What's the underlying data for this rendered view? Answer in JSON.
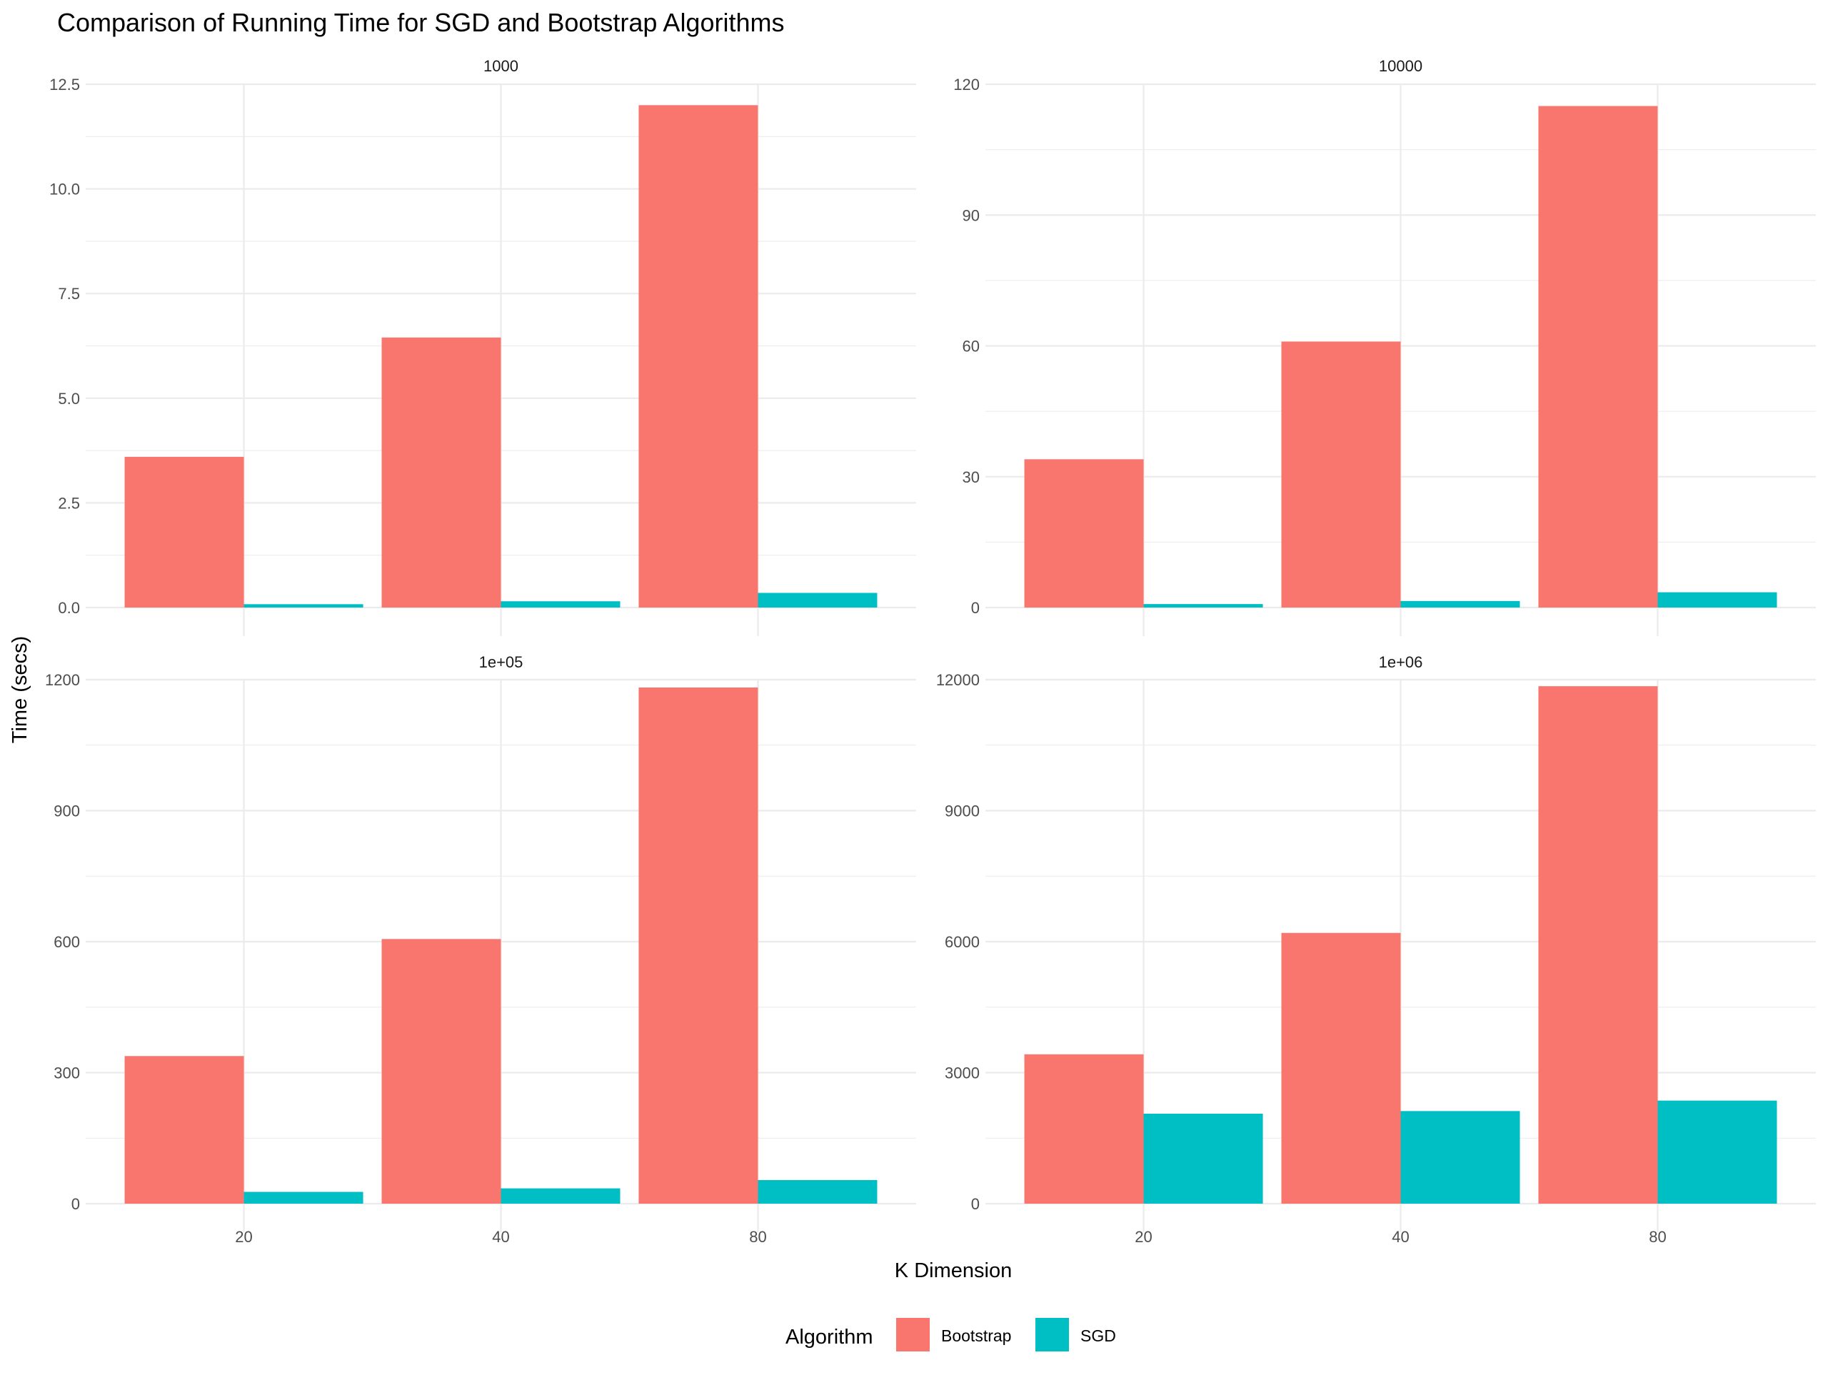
{
  "chart_data": {
    "type": "bar",
    "title": "Comparison of Running Time for SGD and Bootstrap Algorithms",
    "xlabel": "K Dimension",
    "ylabel": "Time (secs)",
    "categories": [
      "20",
      "40",
      "80"
    ],
    "legend": {
      "title": "Algorithm",
      "placement": "bottom",
      "entries": [
        "Bootstrap",
        "SGD"
      ]
    },
    "colors": {
      "Bootstrap": "#F8766D",
      "SGD": "#00BFC4"
    },
    "grid": true,
    "facets": [
      {
        "label": "1000",
        "ylim": [
          0,
          12.5
        ],
        "yticks": [
          0,
          2.5,
          5,
          7.5,
          10,
          12.5
        ],
        "ytick_labels": [
          "0.0",
          "2.5",
          "5.0",
          "7.5",
          "10.0",
          "12.5"
        ],
        "series": [
          {
            "name": "Bootstrap",
            "values": [
              3.6,
              6.45,
              12.0
            ]
          },
          {
            "name": "SGD",
            "values": [
              0.08,
              0.15,
              0.35
            ]
          }
        ]
      },
      {
        "label": "10000",
        "ylim": [
          0,
          120
        ],
        "yticks": [
          0,
          30,
          60,
          90,
          120
        ],
        "ytick_labels": [
          "0",
          "30",
          "60",
          "90",
          "120"
        ],
        "series": [
          {
            "name": "Bootstrap",
            "values": [
              34,
              61,
              115
            ]
          },
          {
            "name": "SGD",
            "values": [
              0.8,
              1.5,
              3.5
            ]
          }
        ]
      },
      {
        "label": "1e+05",
        "ylim": [
          0,
          1200
        ],
        "yticks": [
          0,
          300,
          600,
          900,
          1200
        ],
        "ytick_labels": [
          "0",
          "300",
          "600",
          "900",
          "1200"
        ],
        "series": [
          {
            "name": "Bootstrap",
            "values": [
              338,
              606,
              1182
            ]
          },
          {
            "name": "SGD",
            "values": [
              27,
              35,
              54
            ]
          }
        ]
      },
      {
        "label": "1e+06",
        "ylim": [
          0,
          12000
        ],
        "yticks": [
          0,
          3000,
          6000,
          9000,
          12000
        ],
        "ytick_labels": [
          "0",
          "3000",
          "6000",
          "9000",
          "12000"
        ],
        "series": [
          {
            "name": "Bootstrap",
            "values": [
              3420,
              6200,
              11850
            ]
          },
          {
            "name": "SGD",
            "values": [
              2060,
              2120,
              2360
            ]
          }
        ]
      }
    ]
  }
}
